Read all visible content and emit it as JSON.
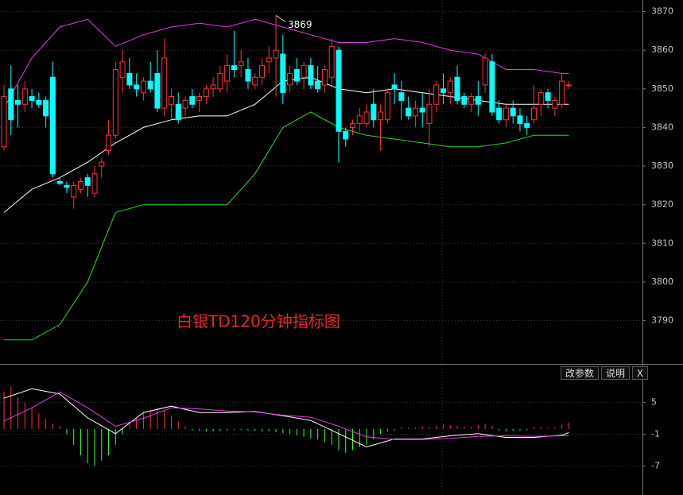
{
  "chart_data": [
    {
      "type": "candlestick",
      "annotation": "白银TD120分钟指标图",
      "high_label": 3869,
      "up_color": "#ff3232",
      "down_color": "#00ffff",
      "grid": true,
      "ylim": [
        3779,
        3873
      ],
      "yticks": [
        3790,
        3800,
        3810,
        3820,
        3830,
        3840,
        3850,
        3860,
        3870
      ],
      "open": [
        3835,
        3850,
        3847,
        3846,
        3848,
        3847,
        3847,
        3853,
        3826,
        3825,
        3822,
        3824,
        3827,
        3823,
        3830,
        3834,
        3838,
        3853,
        3854,
        3851,
        3849,
        3852,
        3854,
        3845,
        3846,
        3846,
        3845,
        3848,
        3847,
        3848,
        3850,
        3850,
        3852,
        3856,
        3856,
        3855,
        3851,
        3853,
        3857,
        3858,
        3859,
        3851,
        3855,
        3853,
        3856,
        3852,
        3851,
        3853,
        3860,
        3839,
        3840,
        3841,
        3841,
        3846,
        3842,
        3842,
        3851,
        3849,
        3845,
        3843,
        3845,
        3841,
        3846,
        3850,
        3849,
        3853,
        3848,
        3846,
        3848,
        3851,
        3857,
        3845,
        3842,
        3845,
        3843,
        3841,
        3842,
        3846,
        3849,
        3845,
        3846,
        3851
      ],
      "high": [
        3851,
        3856,
        3851,
        3852,
        3850,
        3849,
        3848,
        3857,
        3827,
        3826,
        3826,
        3827,
        3828,
        3830,
        3832,
        3842,
        3857,
        3860,
        3858,
        3854,
        3853,
        3857,
        3860,
        3863,
        3850,
        3849,
        3848,
        3850,
        3849,
        3851,
        3853,
        3856,
        3859,
        3865,
        3860,
        3858,
        3854,
        3858,
        3861,
        3869,
        3864,
        3856,
        3858,
        3857,
        3858,
        3856,
        3856,
        3863,
        3861,
        3840,
        3842,
        3845,
        3846,
        3850,
        3846,
        3850,
        3854,
        3852,
        3848,
        3847,
        3849,
        3850,
        3852,
        3854,
        3853,
        3856,
        3849,
        3849,
        3852,
        3859,
        3859,
        3847,
        3846,
        3847,
        3845,
        3843,
        3851,
        3850,
        3850,
        3848,
        3854,
        3852
      ],
      "low": [
        3834,
        3838,
        3840,
        3844,
        3845,
        3845,
        3840,
        3827,
        3825,
        3823,
        3819,
        3823,
        3822,
        3822,
        3827,
        3833,
        3837,
        3849,
        3850,
        3848,
        3847,
        3849,
        3844,
        3843,
        3842,
        3841,
        3843,
        3845,
        3844,
        3846,
        3848,
        3849,
        3849,
        3853,
        3853,
        3850,
        3850,
        3851,
        3854,
        3848,
        3846,
        3849,
        3851,
        3850,
        3850,
        3849,
        3849,
        3851,
        3831,
        3835,
        3838,
        3839,
        3840,
        3840,
        3834,
        3841,
        3846,
        3842,
        3842,
        3840,
        3840,
        3835,
        3844,
        3846,
        3846,
        3846,
        3845,
        3844,
        3843,
        3849,
        3843,
        3841,
        3840,
        3841,
        3839,
        3838,
        3841,
        3843,
        3845,
        3843,
        3845,
        3850
      ],
      "close": [
        3848,
        3842,
        3846,
        3850,
        3847,
        3846,
        3843,
        3828,
        3825.5,
        3824.5,
        3825,
        3826,
        3825,
        3828,
        3831,
        3838,
        3855,
        3857,
        3851,
        3850,
        3852,
        3850,
        3845,
        3858,
        3848,
        3842,
        3847,
        3846,
        3848,
        3850,
        3851,
        3854,
        3856,
        3855,
        3857,
        3852,
        3853,
        3856,
        3858,
        3860,
        3849,
        3854,
        3852,
        3856,
        3851,
        3850,
        3855,
        3861,
        3839,
        3837,
        3841,
        3843,
        3844,
        3842,
        3844,
        3849,
        3850,
        3847,
        3843,
        3845,
        3844,
        3846,
        3851,
        3849,
        3852,
        3847,
        3846,
        3848,
        3846,
        3858,
        3844,
        3842,
        3845,
        3843,
        3841,
        3840,
        3845,
        3849,
        3847,
        3847,
        3852,
        3851
      ],
      "series": [
        {
          "color": "#e040e0",
          "x": [
            0,
            4,
            8,
            12,
            16,
            20,
            24,
            28,
            32,
            36,
            40,
            44,
            48,
            52,
            56,
            60,
            64,
            68,
            72,
            76,
            80,
            81
          ],
          "values": [
            3845,
            3858,
            3866,
            3868,
            3861,
            3864,
            3866,
            3867,
            3866,
            3868,
            3866,
            3864,
            3862,
            3862,
            3863,
            3862,
            3860,
            3859,
            3855,
            3855,
            3854,
            3854
          ]
        },
        {
          "color": "#ffffff",
          "x": [
            0,
            4,
            8,
            12,
            16,
            20,
            24,
            28,
            32,
            36,
            40,
            44,
            48,
            52,
            56,
            60,
            64,
            68,
            72,
            76,
            80,
            81
          ],
          "values": [
            3818,
            3824,
            3827,
            3831,
            3836,
            3840,
            3842,
            3843,
            3843,
            3846,
            3852,
            3853,
            3850,
            3849,
            3850,
            3849,
            3848,
            3847,
            3846,
            3846,
            3846,
            3846
          ]
        },
        {
          "color": "#22dd22",
          "x": [
            0,
            4,
            8,
            12,
            16,
            20,
            24,
            28,
            32,
            36,
            40,
            44,
            48,
            52,
            56,
            60,
            64,
            68,
            72,
            76,
            80,
            81
          ],
          "values": [
            3785,
            3785,
            3789,
            3800,
            3818,
            3820,
            3820,
            3820,
            3820,
            3828,
            3840,
            3844,
            3840,
            3838,
            3837,
            3836,
            3835,
            3835,
            3836,
            3838,
            3838,
            3838
          ]
        }
      ]
    },
    {
      "type": "macd",
      "up_color": "#ff3232",
      "down_color": "#33ff33",
      "grid": true,
      "ylim": [
        -12.5,
        12
      ],
      "yticks": [
        5,
        -1,
        -7
      ],
      "hist": [
        7,
        8,
        6,
        5,
        4,
        3,
        2,
        1,
        0.5,
        -1,
        -3,
        -5,
        -6.5,
        -7,
        -6,
        -5,
        -3,
        -1,
        1,
        2,
        3,
        3.5,
        4,
        3.5,
        2.5,
        1.5,
        0.5,
        -0.3,
        -0.4,
        -0.5,
        -0.5,
        -0.4,
        -0.3,
        -0.2,
        -0.2,
        -0.3,
        -0.4,
        -0.5,
        -0.5,
        -0.6,
        -0.8,
        -1,
        -1.2,
        -1.5,
        -1.8,
        -2,
        -2.5,
        -3,
        -4,
        -4.5,
        -4,
        -3.5,
        -3,
        -2,
        -1,
        -0.5,
        -0.3,
        0.3,
        0.2,
        0.3,
        0.5,
        0.4,
        0.6,
        0.8,
        0.7,
        0.6,
        0.5,
        0.4,
        0.8,
        1,
        0.6,
        -0.3,
        -0.5,
        -0.4,
        -0.3,
        -0.2,
        0.3,
        0.4,
        0.2,
        0.3,
        0.8,
        1.2
      ],
      "series": [
        {
          "color": "#ffffff",
          "x": [
            0,
            4,
            8,
            12,
            16,
            20,
            24,
            28,
            32,
            36,
            40,
            44,
            48,
            52,
            56,
            60,
            64,
            68,
            72,
            76,
            80,
            81
          ],
          "values": [
            5.8,
            7.6,
            6.6,
            2.1,
            -0.9,
            3.1,
            4.3,
            3.1,
            3.1,
            3.3,
            2.5,
            1.6,
            -0.9,
            -3.4,
            -1.9,
            -1.9,
            -1.3,
            -0.9,
            -1.6,
            -1.6,
            -1.2,
            -0.7
          ]
        },
        {
          "color": "#e040e0",
          "x": [
            0,
            4,
            8,
            12,
            16,
            20,
            24,
            28,
            32,
            36,
            40,
            44,
            48,
            52,
            56,
            60,
            64,
            68,
            72,
            76,
            80,
            81
          ],
          "values": [
            1.5,
            4,
            7,
            4,
            0.5,
            2,
            4,
            3.8,
            3.4,
            3.2,
            2.6,
            2.2,
            0.5,
            -1.5,
            -2,
            -2,
            -1.8,
            -1.4,
            -1.3,
            -1.4,
            -1.3,
            -1.3
          ]
        }
      ]
    }
  ],
  "toolbar": {
    "buttons": [
      "改参数",
      "说明",
      "X"
    ]
  }
}
